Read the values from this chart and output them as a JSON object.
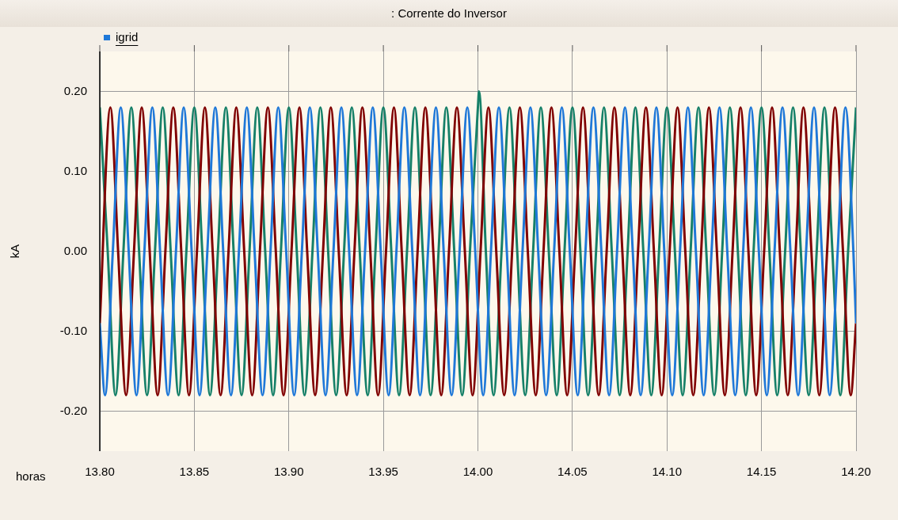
{
  "chart_data": {
    "type": "line",
    "title": ": Corrente do Inversor",
    "xlabel": "horas",
    "ylabel": "kA",
    "legend": "top left",
    "grid": true,
    "xlim": [
      13.8,
      14.2
    ],
    "xticks": [
      {
        "value": 13.8,
        "label": "13.80"
      },
      {
        "value": 13.85,
        "label": "13.85"
      },
      {
        "value": 13.9,
        "label": "13.90"
      },
      {
        "value": 13.95,
        "label": "13.95"
      },
      {
        "value": 14.0,
        "label": "14.00"
      },
      {
        "value": 14.05,
        "label": "14.05"
      },
      {
        "value": 14.1,
        "label": "14.10"
      },
      {
        "value": 14.15,
        "label": "14.15"
      },
      {
        "value": 14.2,
        "label": "14.20"
      }
    ],
    "ylim": [
      -0.25,
      0.25
    ],
    "yticks": [
      {
        "value": -0.2,
        "label": "-0.20"
      },
      {
        "value": -0.1,
        "label": "-0.10"
      },
      {
        "value": 0,
        "label": "0.00"
      },
      {
        "value": 0.1,
        "label": "0.10"
      },
      {
        "value": 0.2,
        "label": "0.20"
      }
    ],
    "series": [
      {
        "name": "igrid",
        "color": "#1f78d8",
        "x": [
          13.8,
          13.8028,
          13.8069,
          13.8111,
          13.8153,
          13.8194,
          13.8236,
          13.8278,
          13.8319,
          13.8361,
          13.8403,
          13.8444,
          13.8486,
          13.8528,
          13.8569,
          13.8611,
          13.8653,
          13.8694,
          13.8736,
          13.8778,
          13.8819,
          13.8861,
          13.8903,
          13.8944,
          13.8986,
          13.9028,
          13.9069,
          13.9111,
          13.9153,
          13.9194,
          13.9236,
          13.9278,
          13.9319,
          13.9361,
          13.9403,
          13.9444,
          13.9486,
          13.9528,
          13.9569,
          13.9611,
          13.9653,
          13.9694,
          13.9736,
          13.9778,
          13.9819,
          13.9861,
          13.9903,
          13.9944,
          13.9986,
          14.0028,
          14.0069,
          14.0111,
          14.0153,
          14.0194,
          14.0236,
          14.0278,
          14.0319,
          14.0361,
          14.0403,
          14.0444,
          14.0486,
          14.0528,
          14.0569,
          14.0611,
          14.0653,
          14.0694,
          14.0736,
          14.0778,
          14.0819,
          14.0861,
          14.0903,
          14.0944,
          14.0986,
          14.1028,
          14.1069,
          14.1111,
          14.1153,
          14.1194,
          14.1236,
          14.1278,
          14.1319,
          14.1361,
          14.1403,
          14.1444,
          14.1486,
          14.1528,
          14.1569,
          14.1611,
          14.1653,
          14.1694,
          14.1736,
          14.1778,
          14.1819,
          14.1861,
          14.1903,
          14.1944,
          14.1986,
          14.2
        ],
        "values": [
          -0.09,
          -0.18,
          0,
          0.18,
          0,
          -0.18,
          0,
          0.18,
          0,
          -0.18,
          0,
          0.18,
          0,
          -0.18,
          0,
          0.18,
          0,
          -0.18,
          0,
          0.18,
          0,
          -0.18,
          0,
          0.18,
          0,
          -0.18,
          0,
          0.18,
          0,
          -0.18,
          0,
          0.18,
          0,
          -0.18,
          0,
          0.18,
          0,
          -0.18,
          0,
          0.18,
          0,
          -0.18,
          0,
          0.18,
          0,
          -0.18,
          0,
          0.18,
          0,
          -0.18,
          0,
          0.18,
          0,
          -0.18,
          0,
          0.18,
          0,
          -0.18,
          0,
          0.18,
          0,
          -0.18,
          0,
          0.18,
          0,
          -0.18,
          0,
          0.18,
          0,
          -0.18,
          0,
          0.18,
          0,
          -0.18,
          0,
          0.18,
          0,
          -0.18,
          0,
          0.18,
          0,
          -0.18,
          0,
          0.18,
          0,
          -0.18,
          0,
          0.18,
          0,
          -0.18,
          0,
          0.18,
          0,
          -0.18,
          0,
          0.18,
          0,
          -0.09
        ]
      },
      {
        "color": "#800000",
        "x": [
          13.8,
          13.8056,
          13.8097,
          13.8139,
          13.8181,
          13.8222,
          13.8264,
          13.8306,
          13.8347,
          13.8389,
          13.8431,
          13.8472,
          13.8514,
          13.8556,
          13.8597,
          13.8639,
          13.8681,
          13.8722,
          13.8764,
          13.8806,
          13.8847,
          13.8889,
          13.8931,
          13.8972,
          13.9014,
          13.9056,
          13.9097,
          13.9139,
          13.9181,
          13.9222,
          13.9264,
          13.9306,
          13.9347,
          13.9389,
          13.9431,
          13.9472,
          13.9514,
          13.9556,
          13.9597,
          13.9639,
          13.9681,
          13.9722,
          13.9764,
          13.9806,
          13.9847,
          13.9889,
          13.9931,
          13.9972,
          14.0014,
          14.0056,
          14.0097,
          14.0139,
          14.0181,
          14.0222,
          14.0264,
          14.0306,
          14.0347,
          14.0389,
          14.0431,
          14.0472,
          14.0514,
          14.0556,
          14.0597,
          14.0639,
          14.0681,
          14.0722,
          14.0764,
          14.0806,
          14.0847,
          14.0889,
          14.0931,
          14.0972,
          14.1014,
          14.1056,
          14.1097,
          14.1139,
          14.1181,
          14.1222,
          14.1264,
          14.1306,
          14.1347,
          14.1389,
          14.1431,
          14.1472,
          14.1514,
          14.1556,
          14.1597,
          14.1639,
          14.1681,
          14.1722,
          14.1764,
          14.1806,
          14.1847,
          14.1889,
          14.1931,
          14.1972,
          14.2
        ],
        "values": [
          -0.09,
          0.18,
          0,
          -0.18,
          0,
          0.18,
          0,
          -0.18,
          0,
          0.18,
          0,
          -0.18,
          0,
          0.18,
          0,
          -0.18,
          0,
          0.18,
          0,
          -0.18,
          0,
          0.18,
          0,
          -0.18,
          0,
          0.18,
          0,
          -0.18,
          0,
          0.18,
          0,
          -0.18,
          0,
          0.18,
          0,
          -0.18,
          0,
          0.18,
          0,
          -0.18,
          0,
          0.18,
          0,
          -0.18,
          0,
          0.18,
          0,
          -0.18,
          0,
          0.18,
          0,
          -0.18,
          0,
          0.18,
          0,
          -0.18,
          0,
          0.18,
          0,
          -0.18,
          0,
          0.18,
          0,
          -0.18,
          0,
          0.18,
          0,
          -0.18,
          0,
          0.18,
          0,
          -0.18,
          0,
          0.18,
          0,
          -0.18,
          0,
          0.18,
          0,
          -0.18,
          0,
          0.18,
          0,
          -0.18,
          0,
          0.18,
          0,
          -0.18,
          0,
          0.18,
          0,
          -0.18,
          0,
          0.18,
          0,
          -0.18,
          -0.09
        ]
      },
      {
        "color": "#168068",
        "x": [
          13.8,
          13.8042,
          13.8083,
          13.8125,
          13.8167,
          13.8208,
          13.825,
          13.8292,
          13.8333,
          13.8375,
          13.8417,
          13.8458,
          13.85,
          13.8542,
          13.8583,
          13.8625,
          13.8667,
          13.8708,
          13.875,
          13.8792,
          13.8833,
          13.8875,
          13.8917,
          13.8958,
          13.9,
          13.9042,
          13.9083,
          13.9125,
          13.9167,
          13.9208,
          13.925,
          13.9292,
          13.9333,
          13.9375,
          13.9417,
          13.9458,
          13.95,
          13.9542,
          13.9583,
          13.9625,
          13.9667,
          13.9708,
          13.975,
          13.9792,
          13.9833,
          13.9875,
          13.9917,
          13.9958,
          14.0,
          14.0006,
          14.0042,
          14.0083,
          14.0125,
          14.0167,
          14.0208,
          14.025,
          14.0292,
          14.0333,
          14.0375,
          14.0417,
          14.0458,
          14.05,
          14.0542,
          14.0583,
          14.0625,
          14.0667,
          14.0708,
          14.075,
          14.0792,
          14.0833,
          14.0875,
          14.0917,
          14.0958,
          14.1,
          14.1042,
          14.1083,
          14.1125,
          14.1167,
          14.1208,
          14.125,
          14.1292,
          14.1333,
          14.1375,
          14.1417,
          14.1458,
          14.15,
          14.1542,
          14.1583,
          14.1625,
          14.1667,
          14.1708,
          14.175,
          14.1792,
          14.1833,
          14.1875,
          14.1917,
          14.1958,
          14.2
        ],
        "values": [
          0.18,
          0,
          -0.18,
          0,
          0.18,
          0,
          -0.18,
          0,
          0.18,
          0,
          -0.18,
          0,
          0.18,
          0,
          -0.18,
          0,
          0.18,
          0,
          -0.18,
          0,
          0.18,
          0,
          -0.18,
          0,
          0.18,
          0,
          -0.18,
          0,
          0.18,
          0,
          -0.18,
          0,
          0.18,
          0,
          -0.18,
          0,
          0.18,
          0,
          -0.18,
          0,
          0.18,
          0,
          -0.18,
          0,
          0.18,
          0,
          -0.18,
          0,
          0.18,
          0.2,
          0,
          -0.18,
          0,
          0.18,
          0,
          -0.18,
          0,
          0.18,
          0,
          -0.18,
          0,
          0.18,
          0,
          -0.18,
          0,
          0.18,
          0,
          -0.18,
          0,
          0.18,
          0,
          -0.18,
          0,
          0.18,
          0,
          -0.18,
          0,
          0.18,
          0,
          -0.18,
          0,
          0.18,
          0,
          -0.18,
          0,
          0.18,
          0,
          -0.18,
          0,
          0.18,
          0,
          -0.18,
          0,
          0.18,
          0,
          -0.18,
          0,
          0.18
        ]
      }
    ]
  }
}
